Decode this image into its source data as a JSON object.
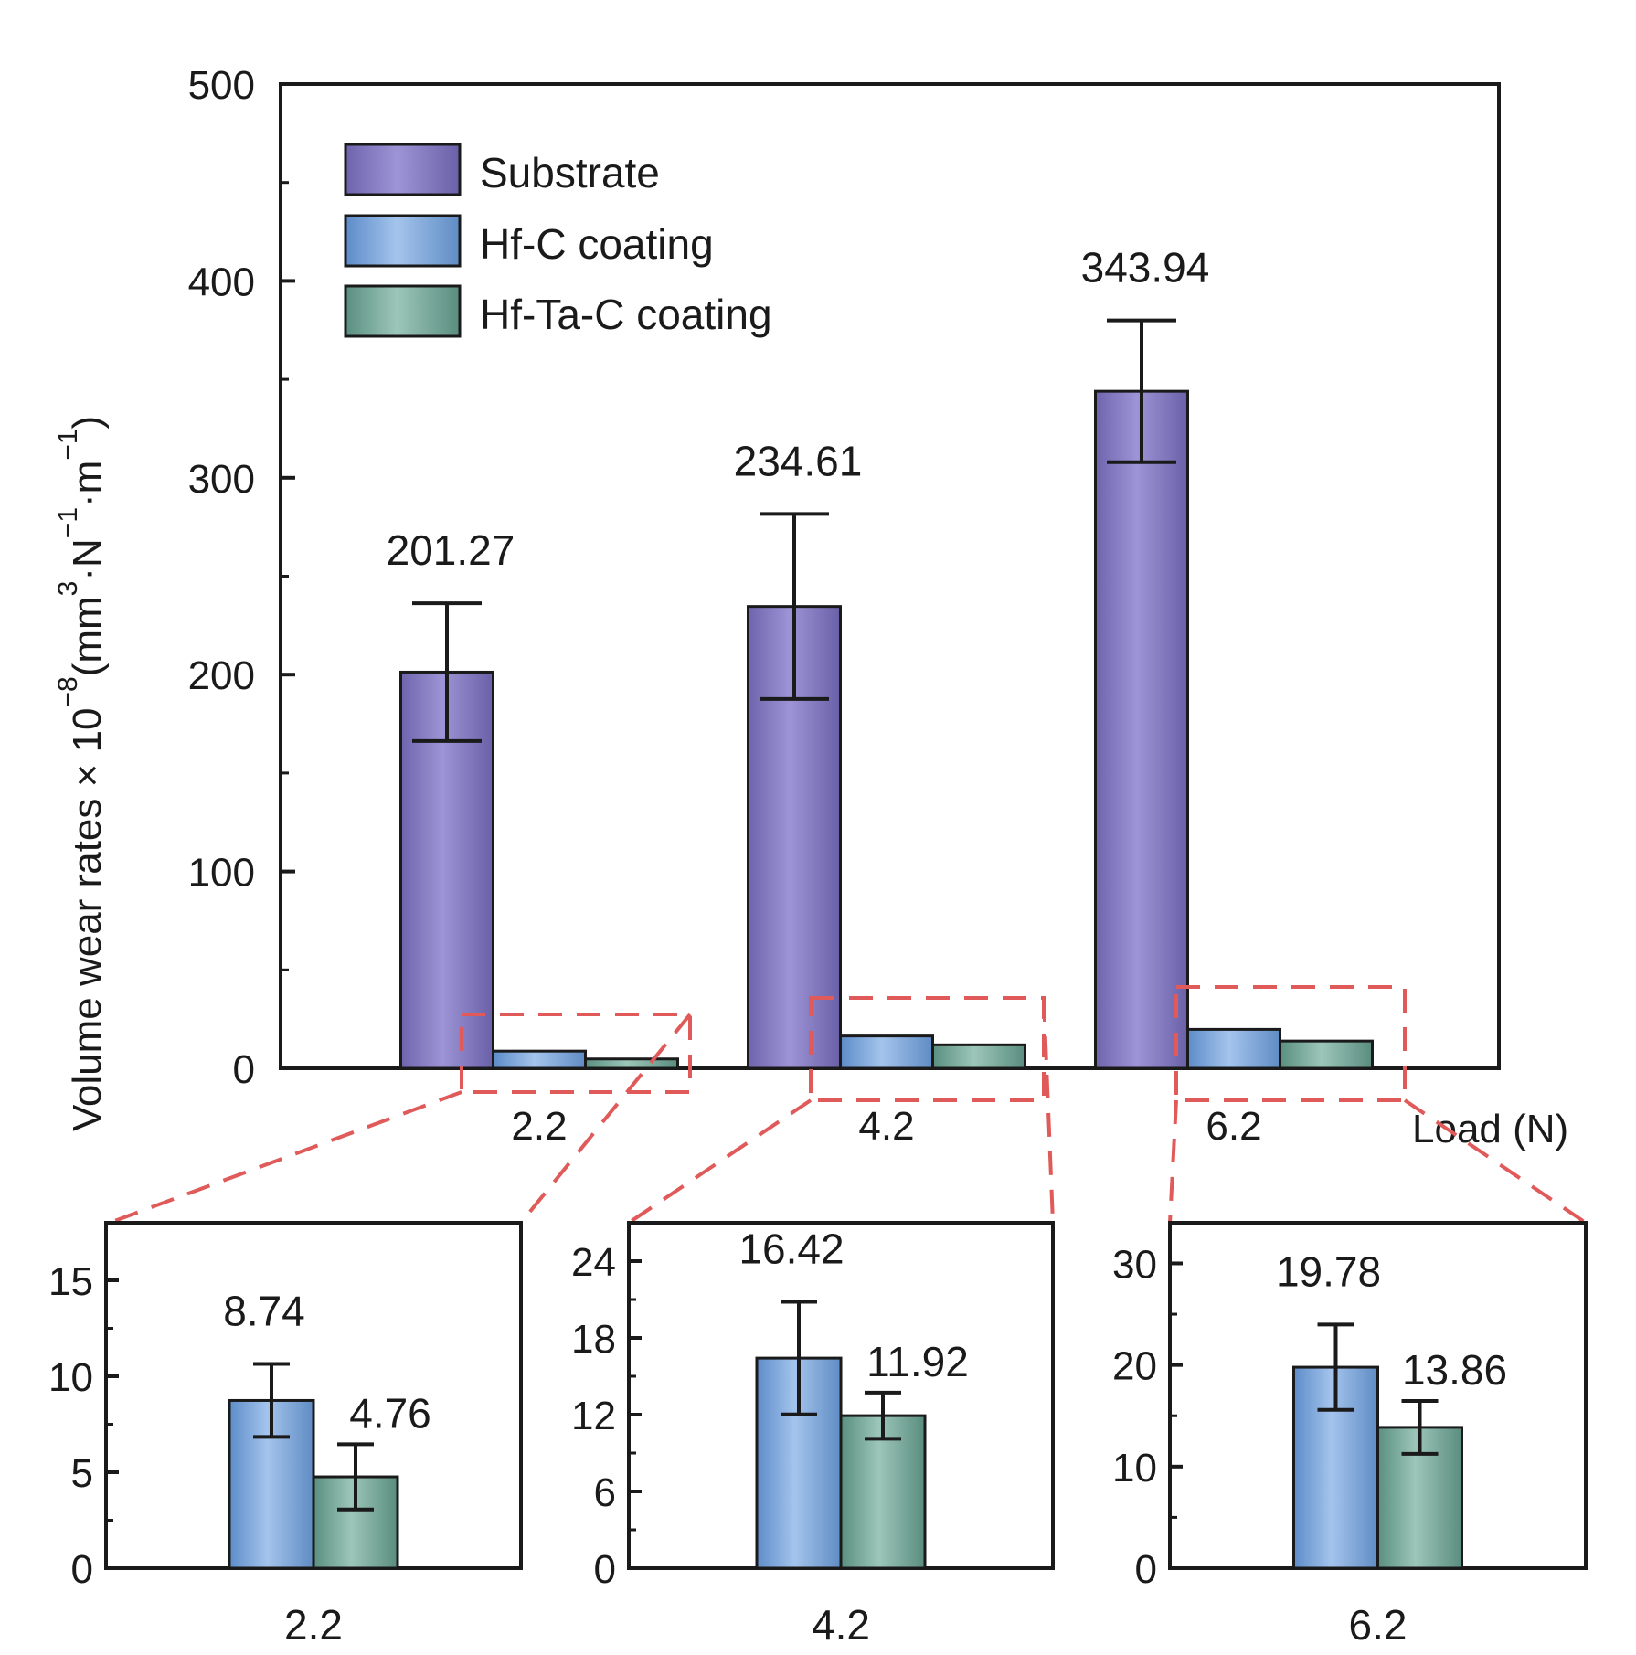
{
  "chart_data": [
    {
      "type": "bar",
      "id": "main",
      "title": "",
      "xlabel": "Load (N)",
      "ylabel": "Volume wear rates × 10",
      "ylabel_exp": "−8",
      "ylabel_unit_open": "(mm",
      "ylabel_unit_e1": "3",
      "ylabel_unit_mid1": "·N",
      "ylabel_unit_e2": "−1",
      "ylabel_unit_mid2": "·m",
      "ylabel_unit_e3": "−1",
      "ylabel_unit_close": ")",
      "ylim": [
        0,
        500
      ],
      "yticks": [
        "0",
        "100",
        "200",
        "300",
        "400",
        "500"
      ],
      "categories": [
        "2.2",
        "4.2",
        "6.2"
      ],
      "legend_position": "top-left",
      "series": [
        {
          "name": "Substrate",
          "color": "#8a80c4",
          "values": [
            201.27,
            234.61,
            343.94
          ],
          "errors": [
            35,
            47,
            36
          ],
          "value_labels": [
            "201.27",
            "234.61",
            "343.94"
          ]
        },
        {
          "name": "Hf-C coating",
          "color": "#7fa6d6",
          "values": [
            8.74,
            16.42,
            19.78
          ],
          "errors": [
            0,
            0,
            0
          ]
        },
        {
          "name": "Hf-Ta-C coating",
          "color": "#77a99a",
          "values": [
            4.76,
            11.92,
            13.86
          ],
          "errors": [
            0,
            0,
            0
          ]
        }
      ]
    },
    {
      "type": "bar",
      "id": "inset-2.2",
      "xlabel": "2.2",
      "ylim": [
        0,
        18
      ],
      "yticks": [
        "0",
        "5",
        "10",
        "15"
      ],
      "series": [
        {
          "name": "Hf-C coating",
          "color": "#7fa6d6",
          "value": 8.74,
          "error": 1.9,
          "label": "8.74"
        },
        {
          "name": "Hf-Ta-C coating",
          "color": "#77a99a",
          "value": 4.76,
          "error": 1.7,
          "label": "4.76"
        }
      ]
    },
    {
      "type": "bar",
      "id": "inset-4.2",
      "xlabel": "4.2",
      "ylim": [
        0,
        27
      ],
      "yticks": [
        "0",
        "6",
        "12",
        "18",
        "24"
      ],
      "series": [
        {
          "name": "Hf-C coating",
          "color": "#7fa6d6",
          "value": 16.42,
          "error": 4.4,
          "label": "16.42"
        },
        {
          "name": "Hf-Ta-C coating",
          "color": "#77a99a",
          "value": 11.92,
          "error": 1.8,
          "label": "11.92"
        }
      ]
    },
    {
      "type": "bar",
      "id": "inset-6.2",
      "xlabel": "6.2",
      "ylim": [
        0,
        34
      ],
      "yticks": [
        "0",
        "10",
        "20",
        "30"
      ],
      "series": [
        {
          "name": "Hf-C coating",
          "color": "#7fa6d6",
          "value": 19.78,
          "error": 4.2,
          "label": "19.78"
        },
        {
          "name": "Hf-Ta-C coating",
          "color": "#77a99a",
          "value": 13.86,
          "error": 2.6,
          "label": "13.86"
        }
      ]
    }
  ],
  "colors": {
    "axis": "#1a1a1a",
    "callout": "#e05a5a"
  }
}
